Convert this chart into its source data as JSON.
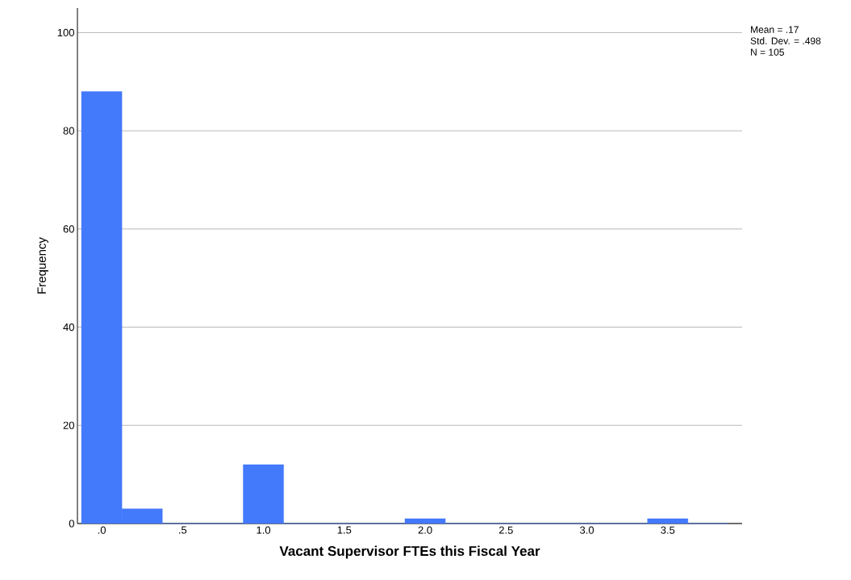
{
  "chart_data": {
    "type": "histogram",
    "xlabel": "Vacant Supervisor FTEs this Fiscal Year",
    "ylabel": "Frequency",
    "bins": [
      -0.125,
      0.125,
      0.375,
      0.625,
      0.875,
      1.125,
      1.375,
      1.625,
      1.875,
      2.125,
      2.375,
      2.625,
      2.875,
      3.125,
      3.375,
      3.625,
      3.875
    ],
    "values": [
      88,
      3,
      0,
      0,
      12,
      0,
      0,
      0,
      1,
      0,
      0,
      0,
      0,
      0,
      1,
      0
    ],
    "color": "#4379fb",
    "xlim": [
      -0.15,
      3.96
    ],
    "ylim": [
      0,
      105
    ],
    "xticks": [
      {
        "value": 0,
        "label": ".0"
      },
      {
        "value": 0.5,
        "label": ".5"
      },
      {
        "value": 1,
        "label": "1.0"
      },
      {
        "value": 1.5,
        "label": "1.5"
      },
      {
        "value": 2,
        "label": "2.0"
      },
      {
        "value": 2.5,
        "label": "2.5"
      },
      {
        "value": 3,
        "label": "3.0"
      },
      {
        "value": 3.5,
        "label": "3.5"
      }
    ],
    "yticks": [
      0,
      20,
      40,
      60,
      80,
      100
    ],
    "grid": "y",
    "annotations": [
      "Mean = .17",
      "Std. Dev. = .498",
      "N = 105"
    ]
  }
}
